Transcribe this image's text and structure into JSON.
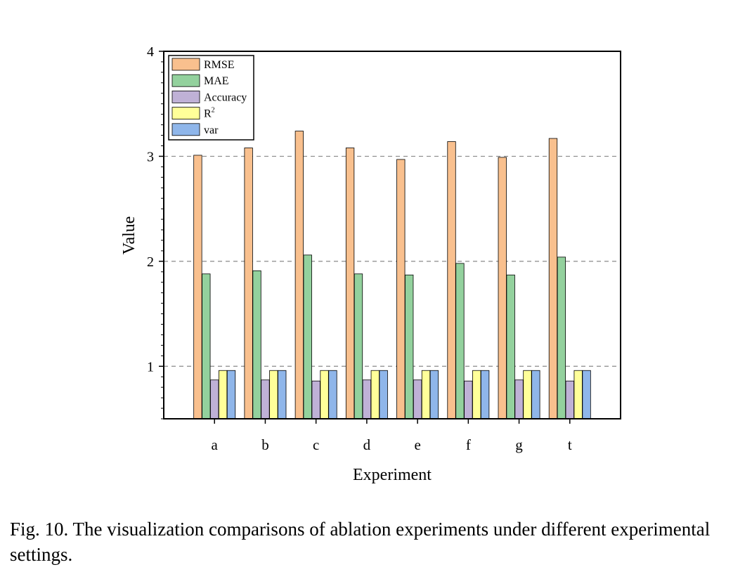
{
  "chart_data": {
    "type": "bar",
    "xlabel": "Experiment",
    "ylabel": "Value",
    "categories": [
      "a",
      "b",
      "c",
      "d",
      "e",
      "f",
      "g",
      "t"
    ],
    "ylim": [
      0.5,
      4
    ],
    "yticks": [
      "1",
      "2",
      "3",
      "4"
    ],
    "grid": "dashed horizontal at 1, 2, 3",
    "legend_position": "top-left",
    "series": [
      {
        "name": "RMSE",
        "color": "#F9C08E",
        "values": [
          3.01,
          3.08,
          3.24,
          3.08,
          2.97,
          3.14,
          2.99,
          3.17
        ]
      },
      {
        "name": "MAE",
        "color": "#93D19D",
        "values": [
          1.88,
          1.91,
          2.06,
          1.88,
          1.87,
          1.98,
          1.87,
          2.04
        ]
      },
      {
        "name": "Accuracy",
        "color": "#BFB1D6",
        "values": [
          0.87,
          0.87,
          0.86,
          0.87,
          0.87,
          0.86,
          0.87,
          0.86
        ]
      },
      {
        "name": "R",
        "superscript": "2",
        "color": "#FFFF99",
        "values": [
          0.96,
          0.96,
          0.96,
          0.96,
          0.96,
          0.96,
          0.96,
          0.96
        ]
      },
      {
        "name": "var",
        "color": "#8FB6EA",
        "values": [
          0.96,
          0.96,
          0.96,
          0.96,
          0.96,
          0.96,
          0.96,
          0.96
        ]
      }
    ]
  },
  "caption": "Fig. 10.  The visualization comparisons of ablation experiments under different experimental  settings."
}
